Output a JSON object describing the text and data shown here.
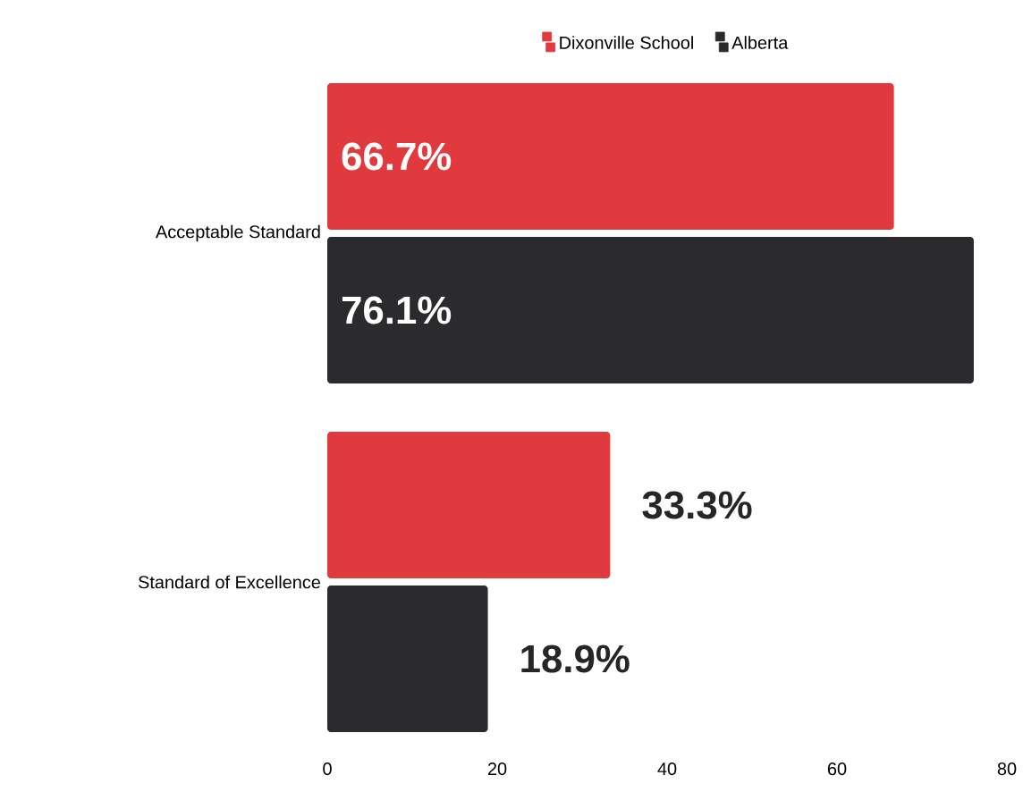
{
  "chart_data": {
    "type": "bar",
    "orientation": "horizontal",
    "categories": [
      "Acceptable Standard",
      "Standard of Excellence"
    ],
    "series": [
      {
        "name": "Dixonville School",
        "color": "#e03a3e",
        "values": [
          66.7,
          33.3
        ],
        "value_labels": [
          "66.7%",
          "33.3%"
        ]
      },
      {
        "name": "Alberta",
        "color": "#2b2b2e",
        "values": [
          76.1,
          18.9
        ],
        "value_labels": [
          "76.1%",
          "18.9%"
        ]
      }
    ],
    "xlim": [
      0,
      80
    ],
    "xticks": [
      0,
      20,
      40,
      60,
      80
    ],
    "grid": false,
    "legend": "top"
  }
}
